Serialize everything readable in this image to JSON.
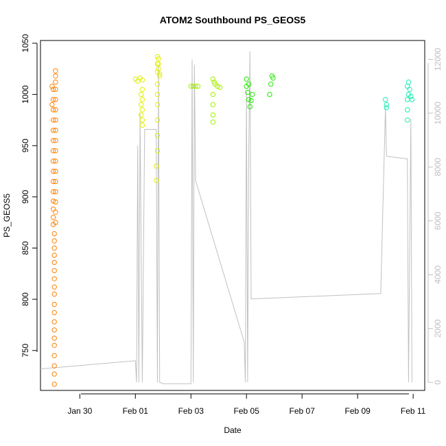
{
  "chart_data": {
    "type": "scatter",
    "title": "ATOM2 Southbound PS_GEOS5",
    "xlabel": "Date",
    "ylabel": "PS_GEOS5",
    "xlim": [
      "2017-01-28 14:00",
      "2017-02-11 10:00"
    ],
    "ylim": [
      711,
      1050
    ],
    "y2lim": [
      -300,
      12700
    ],
    "x_ticks": [
      {
        "date": "2017-01-30",
        "label": "Jan 30"
      },
      {
        "date": "2017-02-01",
        "label": "Feb 01"
      },
      {
        "date": "2017-02-03",
        "label": "Feb 03"
      },
      {
        "date": "2017-02-05",
        "label": "Feb 05"
      },
      {
        "date": "2017-02-07",
        "label": "Feb 07"
      },
      {
        "date": "2017-02-09",
        "label": "Feb 09"
      },
      {
        "date": "2017-02-11",
        "label": "Feb 11"
      }
    ],
    "y_ticks": [
      750,
      800,
      850,
      900,
      950,
      1000,
      1050
    ],
    "y2_ticks": [
      0,
      2000,
      4000,
      6000,
      8000,
      10000,
      12000
    ],
    "colors": {
      "orange": "#ff8000",
      "yellow": "#e0f000",
      "yellow_green": "#a5f000",
      "green_yellow": "#80ee00",
      "green": "#20e800",
      "light_green": "#3cef24",
      "teal": "#18ecb0",
      "altitude_line": "#c0c0c0",
      "axis": "#000000",
      "right_axis": "#bebebe"
    },
    "series": [
      {
        "color": "#ff8000",
        "points": [
          [
            "2017-01-29 02:00",
            717
          ],
          [
            "2017-01-29 02:00",
            727
          ],
          [
            "2017-01-29 02:00",
            735
          ],
          [
            "2017-01-29 02:00",
            745
          ],
          [
            "2017-01-29 02:00",
            755
          ],
          [
            "2017-01-29 02:00",
            762
          ],
          [
            "2017-01-29 02:00",
            770
          ],
          [
            "2017-01-29 02:00",
            778
          ],
          [
            "2017-01-29 02:00",
            787
          ],
          [
            "2017-01-29 02:00",
            795
          ],
          [
            "2017-01-29 02:00",
            805
          ],
          [
            "2017-01-29 02:00",
            812
          ],
          [
            "2017-01-29 02:00",
            820
          ],
          [
            "2017-01-29 02:00",
            828
          ],
          [
            "2017-01-29 02:00",
            836
          ],
          [
            "2017-01-29 02:00",
            843
          ],
          [
            "2017-01-29 02:00",
            850
          ],
          [
            "2017-01-29 02:00",
            857
          ],
          [
            "2017-01-29 02:00",
            864
          ],
          [
            "2017-01-29 01:00",
            873
          ],
          [
            "2017-01-29 01:00",
            880
          ],
          [
            "2017-01-29 01:00",
            888
          ],
          [
            "2017-01-29 01:00",
            896
          ],
          [
            "2017-01-29 01:00",
            905
          ],
          [
            "2017-01-29 01:00",
            915
          ],
          [
            "2017-01-29 01:00",
            925
          ],
          [
            "2017-01-29 01:00",
            935
          ],
          [
            "2017-01-29 01:00",
            945
          ],
          [
            "2017-01-29 01:00",
            955
          ],
          [
            "2017-01-29 01:00",
            965
          ],
          [
            "2017-01-29 01:00",
            975
          ],
          [
            "2017-01-29 01:00",
            985
          ],
          [
            "2017-01-29 01:00",
            995
          ],
          [
            "2017-01-29 01:00",
            1005
          ],
          [
            "2017-01-29 03:00",
            875
          ],
          [
            "2017-01-29 03:00",
            885
          ],
          [
            "2017-01-29 03:00",
            895
          ],
          [
            "2017-01-29 03:00",
            905
          ],
          [
            "2017-01-29 03:00",
            915
          ],
          [
            "2017-01-29 03:00",
            925
          ],
          [
            "2017-01-29 03:00",
            935
          ],
          [
            "2017-01-29 03:00",
            945
          ],
          [
            "2017-01-29 03:00",
            955
          ],
          [
            "2017-01-29 03:00",
            965
          ],
          [
            "2017-01-29 03:00",
            975
          ],
          [
            "2017-01-29 03:00",
            985
          ],
          [
            "2017-01-29 03:00",
            995
          ],
          [
            "2017-01-29 03:00",
            1005
          ],
          [
            "2017-01-29 03:00",
            1012
          ],
          [
            "2017-01-29 03:00",
            1018
          ],
          [
            "2017-01-29 03:00",
            1023
          ],
          [
            "2017-01-29 00:00",
            1008
          ],
          [
            "2017-01-29 00:00",
            990
          ]
        ]
      },
      {
        "color": "#e0f000",
        "points": [
          [
            "2017-02-01 00:00",
            1015
          ],
          [
            "2017-02-01 02:00",
            1013
          ],
          [
            "2017-02-01 04:00",
            1016
          ],
          [
            "2017-02-01 06:00",
            1014
          ],
          [
            "2017-02-01 06:00",
            1005
          ],
          [
            "2017-02-01 06:00",
            995
          ],
          [
            "2017-02-01 06:00",
            985
          ],
          [
            "2017-02-01 06:00",
            975
          ],
          [
            "2017-02-01 06:00",
            970
          ],
          [
            "2017-02-01 05:00",
            980
          ],
          [
            "2017-02-01 05:00",
            990
          ],
          [
            "2017-02-01 05:00",
            1000
          ],
          [
            "2017-02-01 19:00",
            1037
          ],
          [
            "2017-02-01 19:00",
            1030
          ],
          [
            "2017-02-01 19:00",
            1022
          ],
          [
            "2017-02-01 20:00",
            1030
          ],
          [
            "2017-02-01 20:00",
            1025
          ],
          [
            "2017-02-01 21:00",
            1020
          ],
          [
            "2017-02-01 21:00",
            1018
          ],
          [
            "2017-02-01 19:00",
            1010
          ],
          [
            "2017-02-01 19:00",
            1000
          ],
          [
            "2017-02-01 19:00",
            990
          ],
          [
            "2017-02-01 19:00",
            975
          ],
          [
            "2017-02-01 19:00",
            960
          ],
          [
            "2017-02-01 19:00",
            945
          ],
          [
            "2017-02-01 18:00",
            930
          ],
          [
            "2017-02-01 18:00",
            916
          ],
          [
            "2017-02-01 20:00",
            1035
          ]
        ]
      },
      {
        "color": "#a5f000",
        "points": [
          [
            "2017-02-03 00:00",
            1008
          ],
          [
            "2017-02-03 02:00",
            1008
          ],
          [
            "2017-02-03 04:00",
            1008
          ],
          [
            "2017-02-03 06:00",
            1008
          ],
          [
            "2017-02-03 19:00",
            1015
          ],
          [
            "2017-02-03 20:00",
            1012
          ],
          [
            "2017-02-03 21:00",
            1010
          ],
          [
            "2017-02-03 23:00",
            1008
          ],
          [
            "2017-02-04 01:00",
            1007
          ],
          [
            "2017-02-03 19:00",
            1000
          ],
          [
            "2017-02-03 19:00",
            990
          ],
          [
            "2017-02-03 19:00",
            980
          ],
          [
            "2017-02-03 19:00",
            973
          ]
        ]
      },
      {
        "color": "#20e800",
        "points": [
          [
            "2017-02-05 00:00",
            1015
          ],
          [
            "2017-02-05 00:00",
            1008
          ],
          [
            "2017-02-05 01:00",
            1002
          ],
          [
            "2017-02-05 02:00",
            995
          ],
          [
            "2017-02-05 03:00",
            988
          ],
          [
            "2017-02-05 04:00",
            994
          ],
          [
            "2017-02-05 05:00",
            1000
          ],
          [
            "2017-02-05 02:00",
            1010
          ],
          [
            "2017-02-05 20:00",
            1000
          ],
          [
            "2017-02-05 21:00",
            1010
          ],
          [
            "2017-02-05 22:00",
            1018
          ],
          [
            "2017-02-05 23:00",
            1016
          ]
        ]
      },
      {
        "color": "#18ecb0",
        "points": [
          [
            "2017-02-10 00:00",
            995
          ],
          [
            "2017-02-10 01:00",
            990
          ],
          [
            "2017-02-10 01:00",
            987
          ],
          [
            "2017-02-10 19:00",
            1008
          ],
          [
            "2017-02-10 20:00",
            1012
          ],
          [
            "2017-02-10 21:00",
            1005
          ],
          [
            "2017-02-10 22:00",
            998
          ],
          [
            "2017-02-10 23:00",
            995
          ],
          [
            "2017-02-10 19:00",
            995
          ],
          [
            "2017-02-10 19:00",
            985
          ],
          [
            "2017-02-10 19:00",
            975
          ],
          [
            "2017-02-10 20:00",
            1000
          ]
        ]
      }
    ],
    "altitude_line": [
      [
        "2017-01-28 14:00",
        500
      ],
      [
        "2017-02-01 00:00",
        800
      ],
      [
        "2017-02-01 01:00",
        0
      ],
      [
        "2017-02-01 02:00",
        8800
      ],
      [
        "2017-02-01 03:00",
        0
      ],
      [
        "2017-02-01 04:00",
        10000
      ],
      [
        "2017-02-01 06:00",
        0
      ],
      [
        "2017-02-01 08:00",
        9400
      ],
      [
        "2017-02-01 18:00",
        9400
      ],
      [
        "2017-02-01 19:00",
        0
      ],
      [
        "2017-02-01 20:00",
        11800
      ],
      [
        "2017-02-01 21:00",
        0
      ],
      [
        "2017-02-02 00:00",
        -50
      ],
      [
        "2017-02-03 00:00",
        -50
      ],
      [
        "2017-02-03 01:00",
        12000
      ],
      [
        "2017-02-03 02:00",
        0
      ],
      [
        "2017-02-03 03:00",
        11800
      ],
      [
        "2017-02-03 04:00",
        7500
      ],
      [
        "2017-02-04 22:00",
        1500
      ],
      [
        "2017-02-04 23:00",
        0
      ],
      [
        "2017-02-05 00:00",
        10800
      ],
      [
        "2017-02-05 01:00",
        0
      ],
      [
        "2017-02-05 02:00",
        8700
      ],
      [
        "2017-02-05 03:00",
        12300
      ],
      [
        "2017-02-05 04:00",
        3100
      ],
      [
        "2017-02-09 20:00",
        3300
      ],
      [
        "2017-02-10 00:00",
        10200
      ],
      [
        "2017-02-10 01:00",
        8400
      ],
      [
        "2017-02-10 19:00",
        8300
      ],
      [
        "2017-02-10 20:00",
        0
      ],
      [
        "2017-02-10 22:00",
        9800
      ],
      [
        "2017-02-10 23:00",
        0
      ]
    ]
  }
}
